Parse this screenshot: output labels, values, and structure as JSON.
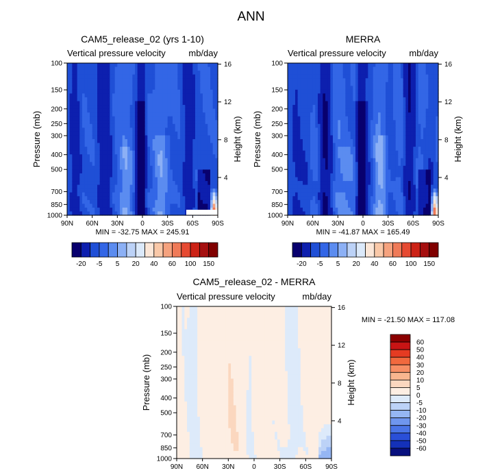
{
  "main_title": "ANN",
  "chart_data": [
    {
      "type": "heatmap",
      "id": "model",
      "title": "CAM5_release_02 (yrs 1-10)",
      "subtitle_left": "Vertical pressure velocity",
      "subtitle_right": "mb/day",
      "xlabel": "",
      "ylabel": "Pressure (mb)",
      "ylabel_right": "Height (km)",
      "x_ticks": [
        "90N",
        "60N",
        "30N",
        "0",
        "30S",
        "60S",
        "90S"
      ],
      "y_ticks": [
        100,
        150,
        200,
        250,
        300,
        400,
        500,
        700,
        850,
        1000
      ],
      "height_ticks": [
        4,
        8,
        12,
        16
      ],
      "ylim": [
        1000,
        100
      ],
      "xlim": [
        90,
        -90
      ],
      "stats_text": "MIN = -32.75   MAX = 245.91",
      "min": -32.75,
      "max": 245.91
    },
    {
      "type": "heatmap",
      "id": "obs",
      "title": "MERRA",
      "subtitle_left": "Vertical pressure velocity",
      "subtitle_right": "mb/day",
      "xlabel": "",
      "ylabel": "Pressure (mb)",
      "ylabel_right": "Height (km)",
      "x_ticks": [
        "90N",
        "60N",
        "30N",
        "0",
        "30S",
        "60S",
        "90S"
      ],
      "y_ticks": [
        100,
        150,
        200,
        250,
        300,
        400,
        500,
        700,
        850,
        1000
      ],
      "height_ticks": [
        4,
        8,
        12,
        16
      ],
      "ylim": [
        1000,
        100
      ],
      "xlim": [
        90,
        -90
      ],
      "stats_text": "MIN = -41.87   MAX = 165.49",
      "min": -41.87,
      "max": 165.49
    },
    {
      "type": "heatmap",
      "id": "diff",
      "title": "CAM5_release_02 - MERRA",
      "subtitle_left": "Vertical pressure velocity",
      "subtitle_right": "mb/day",
      "xlabel": "",
      "ylabel": "Pressure (mb)",
      "ylabel_right": "Height (km)",
      "x_ticks": [
        "90N",
        "60N",
        "30N",
        "0",
        "30S",
        "60S",
        "90S"
      ],
      "y_ticks": [
        100,
        150,
        200,
        250,
        300,
        400,
        500,
        700,
        850,
        1000
      ],
      "height_ticks": [
        4,
        8,
        12,
        16
      ],
      "ylim": [
        1000,
        100
      ],
      "xlim": [
        90,
        -90
      ],
      "stats_text": "MIN = -21.50   MAX = 117.08",
      "min": -21.5,
      "max": 117.08
    }
  ],
  "colorbar_abs": {
    "labels": [
      "-20",
      "-5",
      "5",
      "20",
      "40",
      "60",
      "100",
      "150"
    ],
    "levels": [
      -20,
      -10,
      -5,
      0,
      5,
      10,
      20,
      30,
      40,
      50,
      60,
      80,
      100,
      120,
      150
    ],
    "colors": [
      "#08006e",
      "#0d1fae",
      "#1f4fd6",
      "#3366e6",
      "#5b8cf0",
      "#8cb0f5",
      "#bcd2f7",
      "#dbe9fa",
      "#fbe6d7",
      "#f9c8a8",
      "#f5a27e",
      "#ef7a58",
      "#e64a32",
      "#cc2216",
      "#a50f0f",
      "#800000"
    ]
  },
  "colorbar_diff": {
    "labels": [
      "60",
      "50",
      "40",
      "30",
      "20",
      "10",
      "5",
      "0",
      "-5",
      "-10",
      "-20",
      "-30",
      "-40",
      "-50",
      "-60"
    ],
    "colors": [
      "#8b0000",
      "#c81414",
      "#e53b22",
      "#f1693e",
      "#f78e64",
      "#f9b68f",
      "#fbd7bf",
      "#fdeee3",
      "#ddeafa",
      "#bcd2f7",
      "#95b6f3",
      "#6f96ee",
      "#4a74e6",
      "#2a4fd8",
      "#1431b9",
      "#08107e"
    ]
  }
}
